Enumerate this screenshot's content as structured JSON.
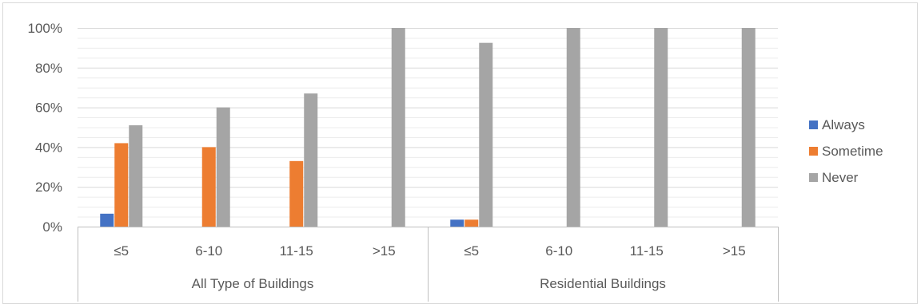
{
  "chart_data": {
    "type": "bar",
    "y_ticks": [
      "0%",
      "20%",
      "40%",
      "60%",
      "80%",
      "100%"
    ],
    "ylim": [
      0,
      100
    ],
    "grid": true,
    "legend_position": "right",
    "groups": [
      {
        "label": "All Type of Buildings",
        "categories": [
          "≤5",
          "6-10",
          "11-15",
          ">15"
        ]
      },
      {
        "label": "Residential Buildings",
        "categories": [
          "≤5",
          "6-10",
          "11-15",
          ">15"
        ]
      }
    ],
    "series": [
      {
        "name": "Always",
        "color": "#4472c4",
        "values": [
          6.5,
          0,
          0,
          0,
          3.5,
          0,
          0,
          0
        ]
      },
      {
        "name": "Sometime",
        "color": "#ed7d31",
        "values": [
          42,
          40,
          33,
          0,
          3.5,
          0,
          0,
          0
        ]
      },
      {
        "name": "Never",
        "color": "#a5a5a5",
        "values": [
          51,
          60,
          67,
          100,
          92.5,
          100,
          100,
          100
        ]
      }
    ]
  }
}
